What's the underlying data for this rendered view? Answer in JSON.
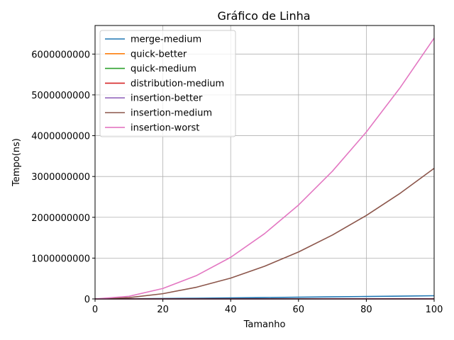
{
  "chart_data": {
    "type": "line",
    "title": "Gráfico de Linha",
    "xlabel": "Tamanho",
    "ylabel": "Tempo(ns)",
    "xlim": [
      0,
      100
    ],
    "ylim": [
      0,
      6700000000
    ],
    "xticks": [
      0,
      20,
      40,
      60,
      80,
      100
    ],
    "yticks": [
      0,
      1000000000,
      2000000000,
      3000000000,
      4000000000,
      5000000000,
      6000000000
    ],
    "xtick_labels": [
      "0",
      "20",
      "40",
      "60",
      "80",
      "100"
    ],
    "ytick_labels": [
      "0",
      "1000000000",
      "2000000000",
      "3000000000",
      "4000000000",
      "5000000000",
      "6000000000"
    ],
    "grid": true,
    "legend_position": "top-left",
    "x": [
      0,
      10,
      20,
      30,
      40,
      50,
      60,
      70,
      80,
      90,
      100
    ],
    "series": [
      {
        "name": "merge-medium",
        "color": "#1f77b4",
        "values": [
          0,
          4000000,
          10000000,
          17000000,
          25000000,
          33000000,
          42000000,
          51000000,
          60000000,
          69000000,
          78000000
        ]
      },
      {
        "name": "quick-better",
        "color": "#ff7f0e",
        "values": [
          0,
          100000,
          200000,
          300000,
          400000,
          500000,
          600000,
          700000,
          800000,
          900000,
          1000000
        ]
      },
      {
        "name": "quick-medium",
        "color": "#2ca02c",
        "values": [
          0,
          200000,
          500000,
          800000,
          1100000,
          1400000,
          1800000,
          2100000,
          2500000,
          2800000,
          3200000
        ]
      },
      {
        "name": "distribution-medium",
        "color": "#d62728",
        "values": [
          0,
          300000,
          700000,
          1000000,
          1400000,
          1800000,
          2200000,
          2600000,
          3000000,
          3400000,
          3800000
        ]
      },
      {
        "name": "insertion-better",
        "color": "#9467bd",
        "values": [
          0,
          10000,
          20000,
          30000,
          40000,
          50000,
          60000,
          70000,
          80000,
          90000,
          100000
        ]
      },
      {
        "name": "insertion-medium",
        "color": "#8c564b",
        "values": [
          0,
          32000000,
          128000000,
          288000000,
          510000000,
          800000000,
          1150000000,
          1565000000,
          2045000000,
          2590000000,
          3200000000
        ]
      },
      {
        "name": "insertion-worst",
        "color": "#e377c2",
        "values": [
          0,
          64000000,
          256000000,
          576000000,
          1020000000,
          1600000000,
          2300000000,
          3130000000,
          4090000000,
          5180000000,
          6390000000
        ]
      }
    ]
  }
}
